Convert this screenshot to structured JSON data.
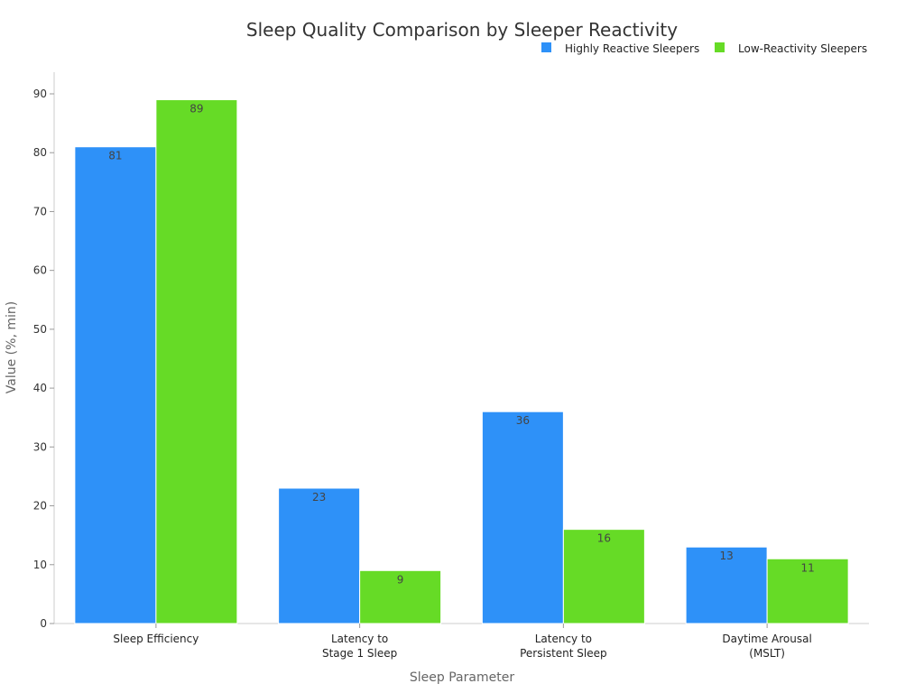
{
  "chart_data": {
    "type": "bar",
    "title": "Sleep Quality Comparison by Sleeper Reactivity",
    "xlabel": "Sleep Parameter",
    "ylabel": "Value (%, min)",
    "ylim": [
      0,
      90
    ],
    "yticks": [
      0,
      10,
      20,
      30,
      40,
      50,
      60,
      70,
      80,
      90
    ],
    "grid": false,
    "legend_position": "top-right",
    "categories": [
      [
        "Sleep Efficiency"
      ],
      [
        "Latency to",
        "Stage 1 Sleep"
      ],
      [
        "Latency to",
        "Persistent Sleep"
      ],
      [
        "Daytime Arousal",
        "(MSLT)"
      ]
    ],
    "series": [
      {
        "name": "Highly Reactive Sleepers",
        "color": "#2e91f8",
        "values": [
          81,
          23,
          36,
          13
        ]
      },
      {
        "name": "Low-Reactivity Sleepers",
        "color": "#66db26",
        "values": [
          89,
          9,
          16,
          11
        ]
      }
    ]
  }
}
